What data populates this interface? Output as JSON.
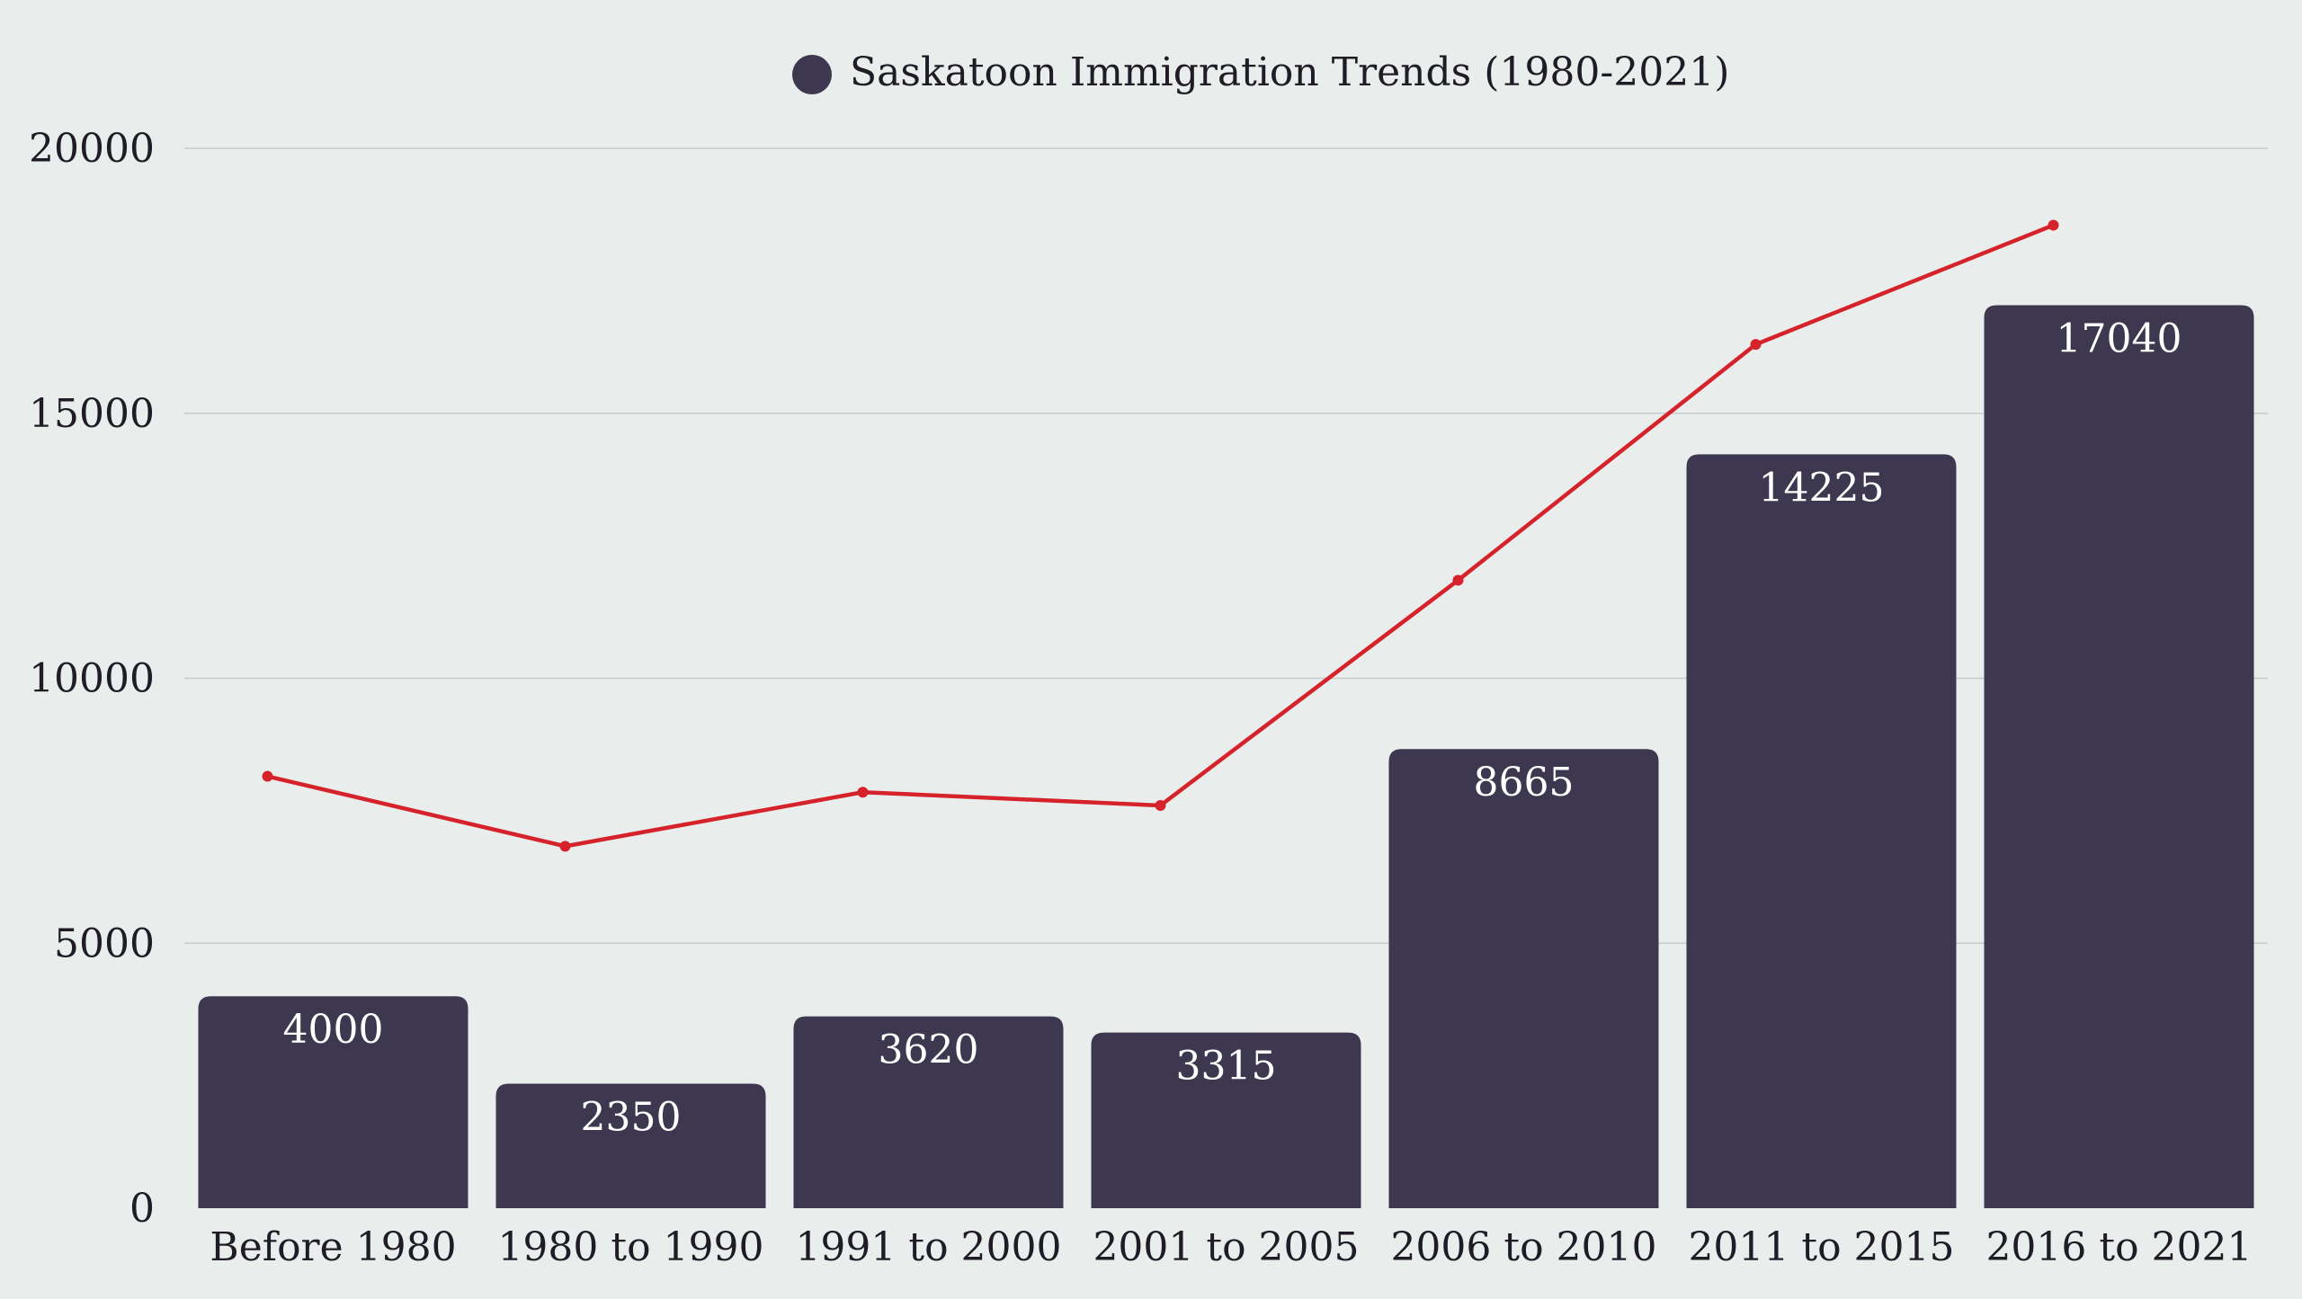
{
  "colors": {
    "background": "#e9edeb",
    "bar": "#3d3850",
    "line": "#d6232b",
    "grid": "#c7cbc9",
    "axis_text": "#1f1c26",
    "bar_label": "#ffffff"
  },
  "chart_data": {
    "type": "bar",
    "title": "",
    "xlabel": "",
    "ylabel": "",
    "ylim": [
      0,
      20000
    ],
    "yticks": [
      0,
      5000,
      10000,
      15000,
      20000
    ],
    "grid": true,
    "legend": {
      "position": "top-center",
      "entries": [
        "Saskatoon Immigration Trends (1980-2021)"
      ]
    },
    "categories": [
      "Before 1980",
      "1980 to 1990",
      "1991 to 2000",
      "2001 to 2005",
      "2006 to 2010",
      "2011 to 2015",
      "2016 to 2021"
    ],
    "series": [
      {
        "name": "Saskatoon Immigration Trends (1980-2021)",
        "type": "bar",
        "values": [
          4000,
          2350,
          3620,
          3315,
          8665,
          14225,
          17040
        ],
        "data_labels": [
          "4000",
          "2350",
          "3620",
          "3315",
          "8665",
          "14225",
          "17040"
        ]
      },
      {
        "name": "",
        "type": "line",
        "values": [
          8150,
          6830,
          7850,
          7600,
          11850,
          16300,
          18550
        ]
      }
    ]
  }
}
